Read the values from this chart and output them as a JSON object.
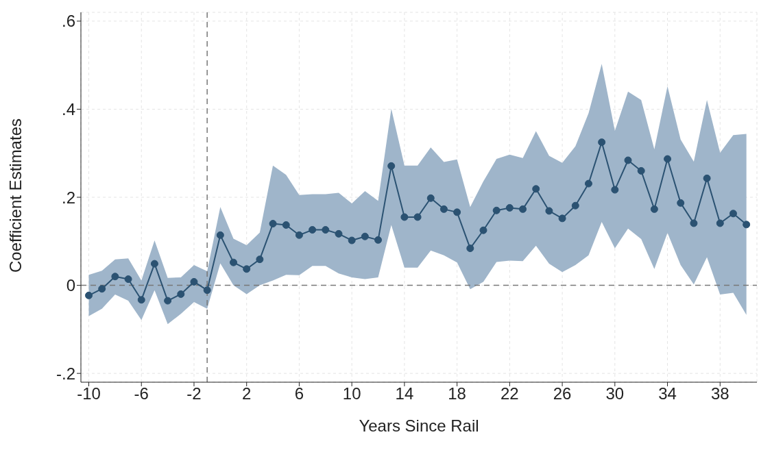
{
  "chart_data": {
    "type": "line",
    "xlabel": "Years Since Rail",
    "ylabel": "Coefficient Estimates",
    "x": [
      -10,
      -9,
      -8,
      -7,
      -6,
      -5,
      -4,
      -3,
      -2,
      -1,
      0,
      1,
      2,
      3,
      4,
      5,
      6,
      7,
      8,
      9,
      10,
      11,
      12,
      13,
      14,
      15,
      16,
      17,
      18,
      19,
      20,
      21,
      22,
      23,
      24,
      25,
      26,
      27,
      28,
      29,
      30,
      31,
      32,
      33,
      34,
      35,
      36,
      37,
      38,
      39,
      40
    ],
    "series": [
      {
        "color": "#2b5272",
        "values": [
          -0.023,
          -0.008,
          0.02,
          0.014,
          -0.033,
          0.049,
          -0.035,
          -0.02,
          0.008,
          -0.011,
          0.114,
          0.052,
          0.037,
          0.059,
          0.14,
          0.137,
          0.114,
          0.126,
          0.126,
          0.117,
          0.102,
          0.111,
          0.103,
          0.271,
          0.155,
          0.155,
          0.198,
          0.173,
          0.166,
          0.084,
          0.125,
          0.17,
          0.176,
          0.173,
          0.219,
          0.169,
          0.152,
          0.181,
          0.231,
          0.325,
          0.217,
          0.284,
          0.26,
          0.173,
          0.287,
          0.187,
          0.141,
          0.243,
          0.141,
          0.163,
          0.138
        ],
        "lower": [
          -0.07,
          -0.053,
          -0.021,
          -0.035,
          -0.079,
          -0.011,
          -0.088,
          -0.065,
          -0.038,
          -0.053,
          0.05,
          0,
          -0.02,
          0,
          0.011,
          0.024,
          0.023,
          0.044,
          0.044,
          0.027,
          0.018,
          0.014,
          0.018,
          0.137,
          0.04,
          0.04,
          0.079,
          0.068,
          0.052,
          -0.009,
          0.008,
          0.053,
          0.056,
          0.055,
          0.09,
          0.049,
          0.03,
          0.046,
          0.068,
          0.144,
          0.084,
          0.129,
          0.105,
          0.037,
          0.119,
          0.046,
          0.002,
          0.064,
          -0.021,
          -0.017,
          -0.067
        ],
        "upper": [
          0.024,
          0.033,
          0.059,
          0.061,
          0.011,
          0.102,
          0.017,
          0.018,
          0.046,
          0.032,
          0.178,
          0.106,
          0.091,
          0.12,
          0.272,
          0.251,
          0.205,
          0.207,
          0.207,
          0.21,
          0.186,
          0.214,
          0.192,
          0.401,
          0.272,
          0.272,
          0.313,
          0.28,
          0.286,
          0.178,
          0.236,
          0.287,
          0.297,
          0.289,
          0.35,
          0.294,
          0.278,
          0.316,
          0.391,
          0.503,
          0.351,
          0.44,
          0.421,
          0.309,
          0.452,
          0.331,
          0.281,
          0.421,
          0.301,
          0.341,
          0.344
        ]
      }
    ],
    "xlim": [
      -10.6,
      40.8
    ],
    "xticks": [
      -10,
      -6,
      -2,
      2,
      6,
      10,
      14,
      18,
      22,
      26,
      30,
      34,
      38
    ],
    "ylim": [
      -0.22,
      0.62
    ],
    "yticks": [
      {
        "value": -0.2,
        "label": "-.2"
      },
      0,
      {
        "value": 0.2,
        "label": ".2"
      },
      {
        "value": 0.4,
        "label": ".4"
      },
      {
        "value": 0.6,
        "label": ".6"
      }
    ],
    "ref_lines": [
      {
        "axis": "y",
        "value": 0,
        "color": "#777777",
        "line_style": "dashed"
      },
      {
        "axis": "x",
        "value": -1,
        "color": "#777777",
        "line_style": "dashed"
      }
    ],
    "grid": true,
    "marker": "circle",
    "line_style": "solid",
    "legend": false
  }
}
